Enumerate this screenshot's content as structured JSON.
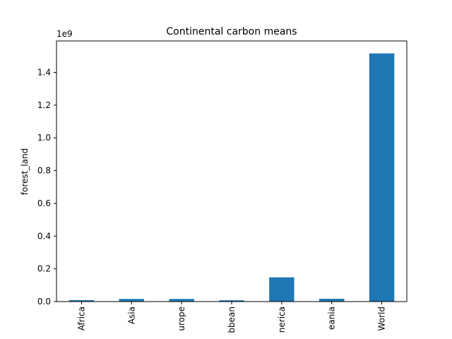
{
  "chart_data": {
    "type": "bar",
    "title": "Continental carbon means",
    "xlabel": "",
    "ylabel": "forest_land",
    "scale_label": "1e9",
    "categories": [
      "Africa",
      "Asia",
      "urope",
      "bbean",
      "nerica",
      "eania",
      "World"
    ],
    "values": [
      9000000,
      16000000,
      16000000,
      8000000,
      148000000,
      17000000,
      1516000000
    ],
    "ylim": [
      0,
      1592000000
    ],
    "yticks": [
      0,
      200000000,
      400000000,
      600000000,
      800000000,
      1000000000,
      1200000000,
      1400000000
    ],
    "ytick_labels": [
      "0.0",
      "0.2",
      "0.4",
      "0.6",
      "0.8",
      "1.0",
      "1.2",
      "1.4"
    ],
    "bar_color": "#1f77b4",
    "grid": false,
    "legend": "none"
  }
}
